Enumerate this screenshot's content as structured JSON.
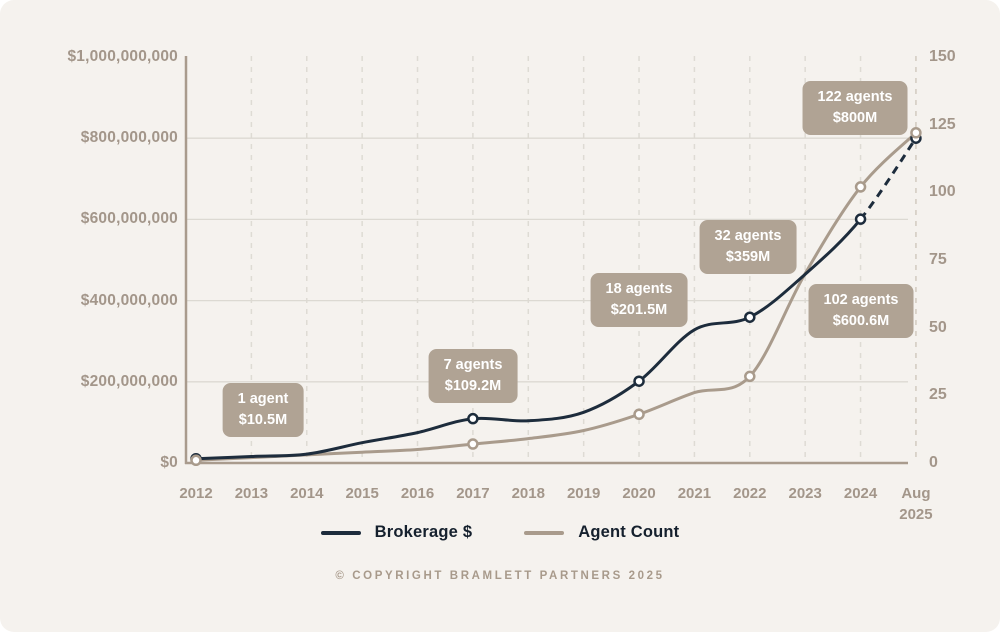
{
  "chart_data": {
    "type": "line",
    "title": "",
    "categories": [
      "2012",
      "2013",
      "2014",
      "2015",
      "2016",
      "2017",
      "2018",
      "2019",
      "2020",
      "2021",
      "2022",
      "2023",
      "2024",
      "Aug\n2025"
    ],
    "series": [
      {
        "name": "Brokerage $",
        "unit": "USD millions",
        "color": "#1d2c3c",
        "axis": "left",
        "values": [
          10.5,
          16,
          22,
          50,
          75,
          109.2,
          104,
          125,
          201.5,
          328,
          359,
          465,
          600.6,
          800
        ],
        "marker_indices": [
          0,
          5,
          8,
          10,
          12,
          13
        ],
        "dashed_from_index": 12
      },
      {
        "name": "Agent Count",
        "unit": "agents",
        "color": "#a99b8c",
        "axis": "right",
        "values": [
          1,
          2,
          3,
          4,
          5,
          7,
          9,
          12,
          18,
          26,
          32,
          70,
          102,
          122
        ],
        "marker_indices": [
          0,
          5,
          8,
          10,
          12,
          13
        ],
        "dashed_from_index": null
      }
    ],
    "left_axis": {
      "label": "",
      "min": 0,
      "max": 1000000000,
      "tick_labels": [
        "$1,000,000,000",
        "$800,000,000",
        "$600,000,000",
        "$400,000,000",
        "$200,000,000",
        "$0"
      ],
      "tick_values_musd": [
        1000,
        800,
        600,
        400,
        200,
        0
      ]
    },
    "right_axis": {
      "label": "",
      "min": 0,
      "max": 150,
      "tick_labels": [
        "150",
        "125",
        "100",
        "75",
        "50",
        "25",
        "0"
      ],
      "tick_values": [
        150,
        125,
        100,
        75,
        50,
        25,
        0
      ]
    },
    "grid": {
      "horizontal": "solid",
      "vertical": "dashed"
    },
    "annotations": [
      {
        "year": "2012",
        "line1": "1 agent",
        "line2": "$10.5M"
      },
      {
        "year": "2017",
        "line1": "7 agents",
        "line2": "$109.2M"
      },
      {
        "year": "2020",
        "line1": "18 agents",
        "line2": "$201.5M"
      },
      {
        "year": "2022",
        "line1": "32 agents",
        "line2": "$359M"
      },
      {
        "year": "2024",
        "line1": "102 agents",
        "line2": "$600.6M"
      },
      {
        "year": "Aug 2025",
        "line1": "122 agents",
        "line2": "$800M"
      }
    ]
  },
  "legend": {
    "items": [
      {
        "label": "Brokerage $",
        "color": "#1d2c3c"
      },
      {
        "label": "Agent Count",
        "color": "#a99b8c"
      }
    ],
    "position": "bottom-center"
  },
  "footer": {
    "copyright": "© COPYRIGHT BRAMLETT PARTNERS 2025"
  },
  "colors": {
    "background": "#f5f2ee",
    "axis_line": "#a99b8d",
    "grid_horizontal": "#dcd9d2",
    "grid_vertical": "#dedbd4",
    "grid_vertical_last": "#d2cabf",
    "tick_text": "#a3968a",
    "annotation_bg": "#b0a394",
    "annotation_text": "#ffffff",
    "marker_fill": "#ffffff"
  }
}
